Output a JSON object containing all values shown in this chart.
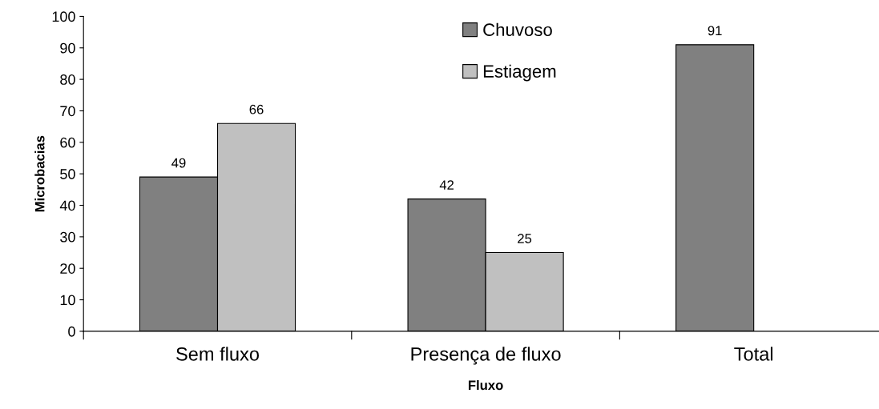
{
  "chart_data": {
    "type": "bar",
    "xlabel": "Fluxo",
    "ylabel": "Microbacias",
    "categories": [
      "Sem fluxo",
      "Presença de fluxo",
      "Total"
    ],
    "series": [
      {
        "name": "Chuvoso",
        "color": "#808080",
        "values": [
          49,
          42,
          91
        ]
      },
      {
        "name": "Estiagem",
        "color": "#c0c0c0",
        "values": [
          66,
          25,
          null
        ]
      }
    ],
    "ylim": [
      0,
      100
    ],
    "yticks": [
      0,
      10,
      20,
      30,
      40,
      50,
      60,
      70,
      80,
      90,
      100
    ],
    "data_labels": true,
    "grid": false,
    "legend": "top"
  }
}
